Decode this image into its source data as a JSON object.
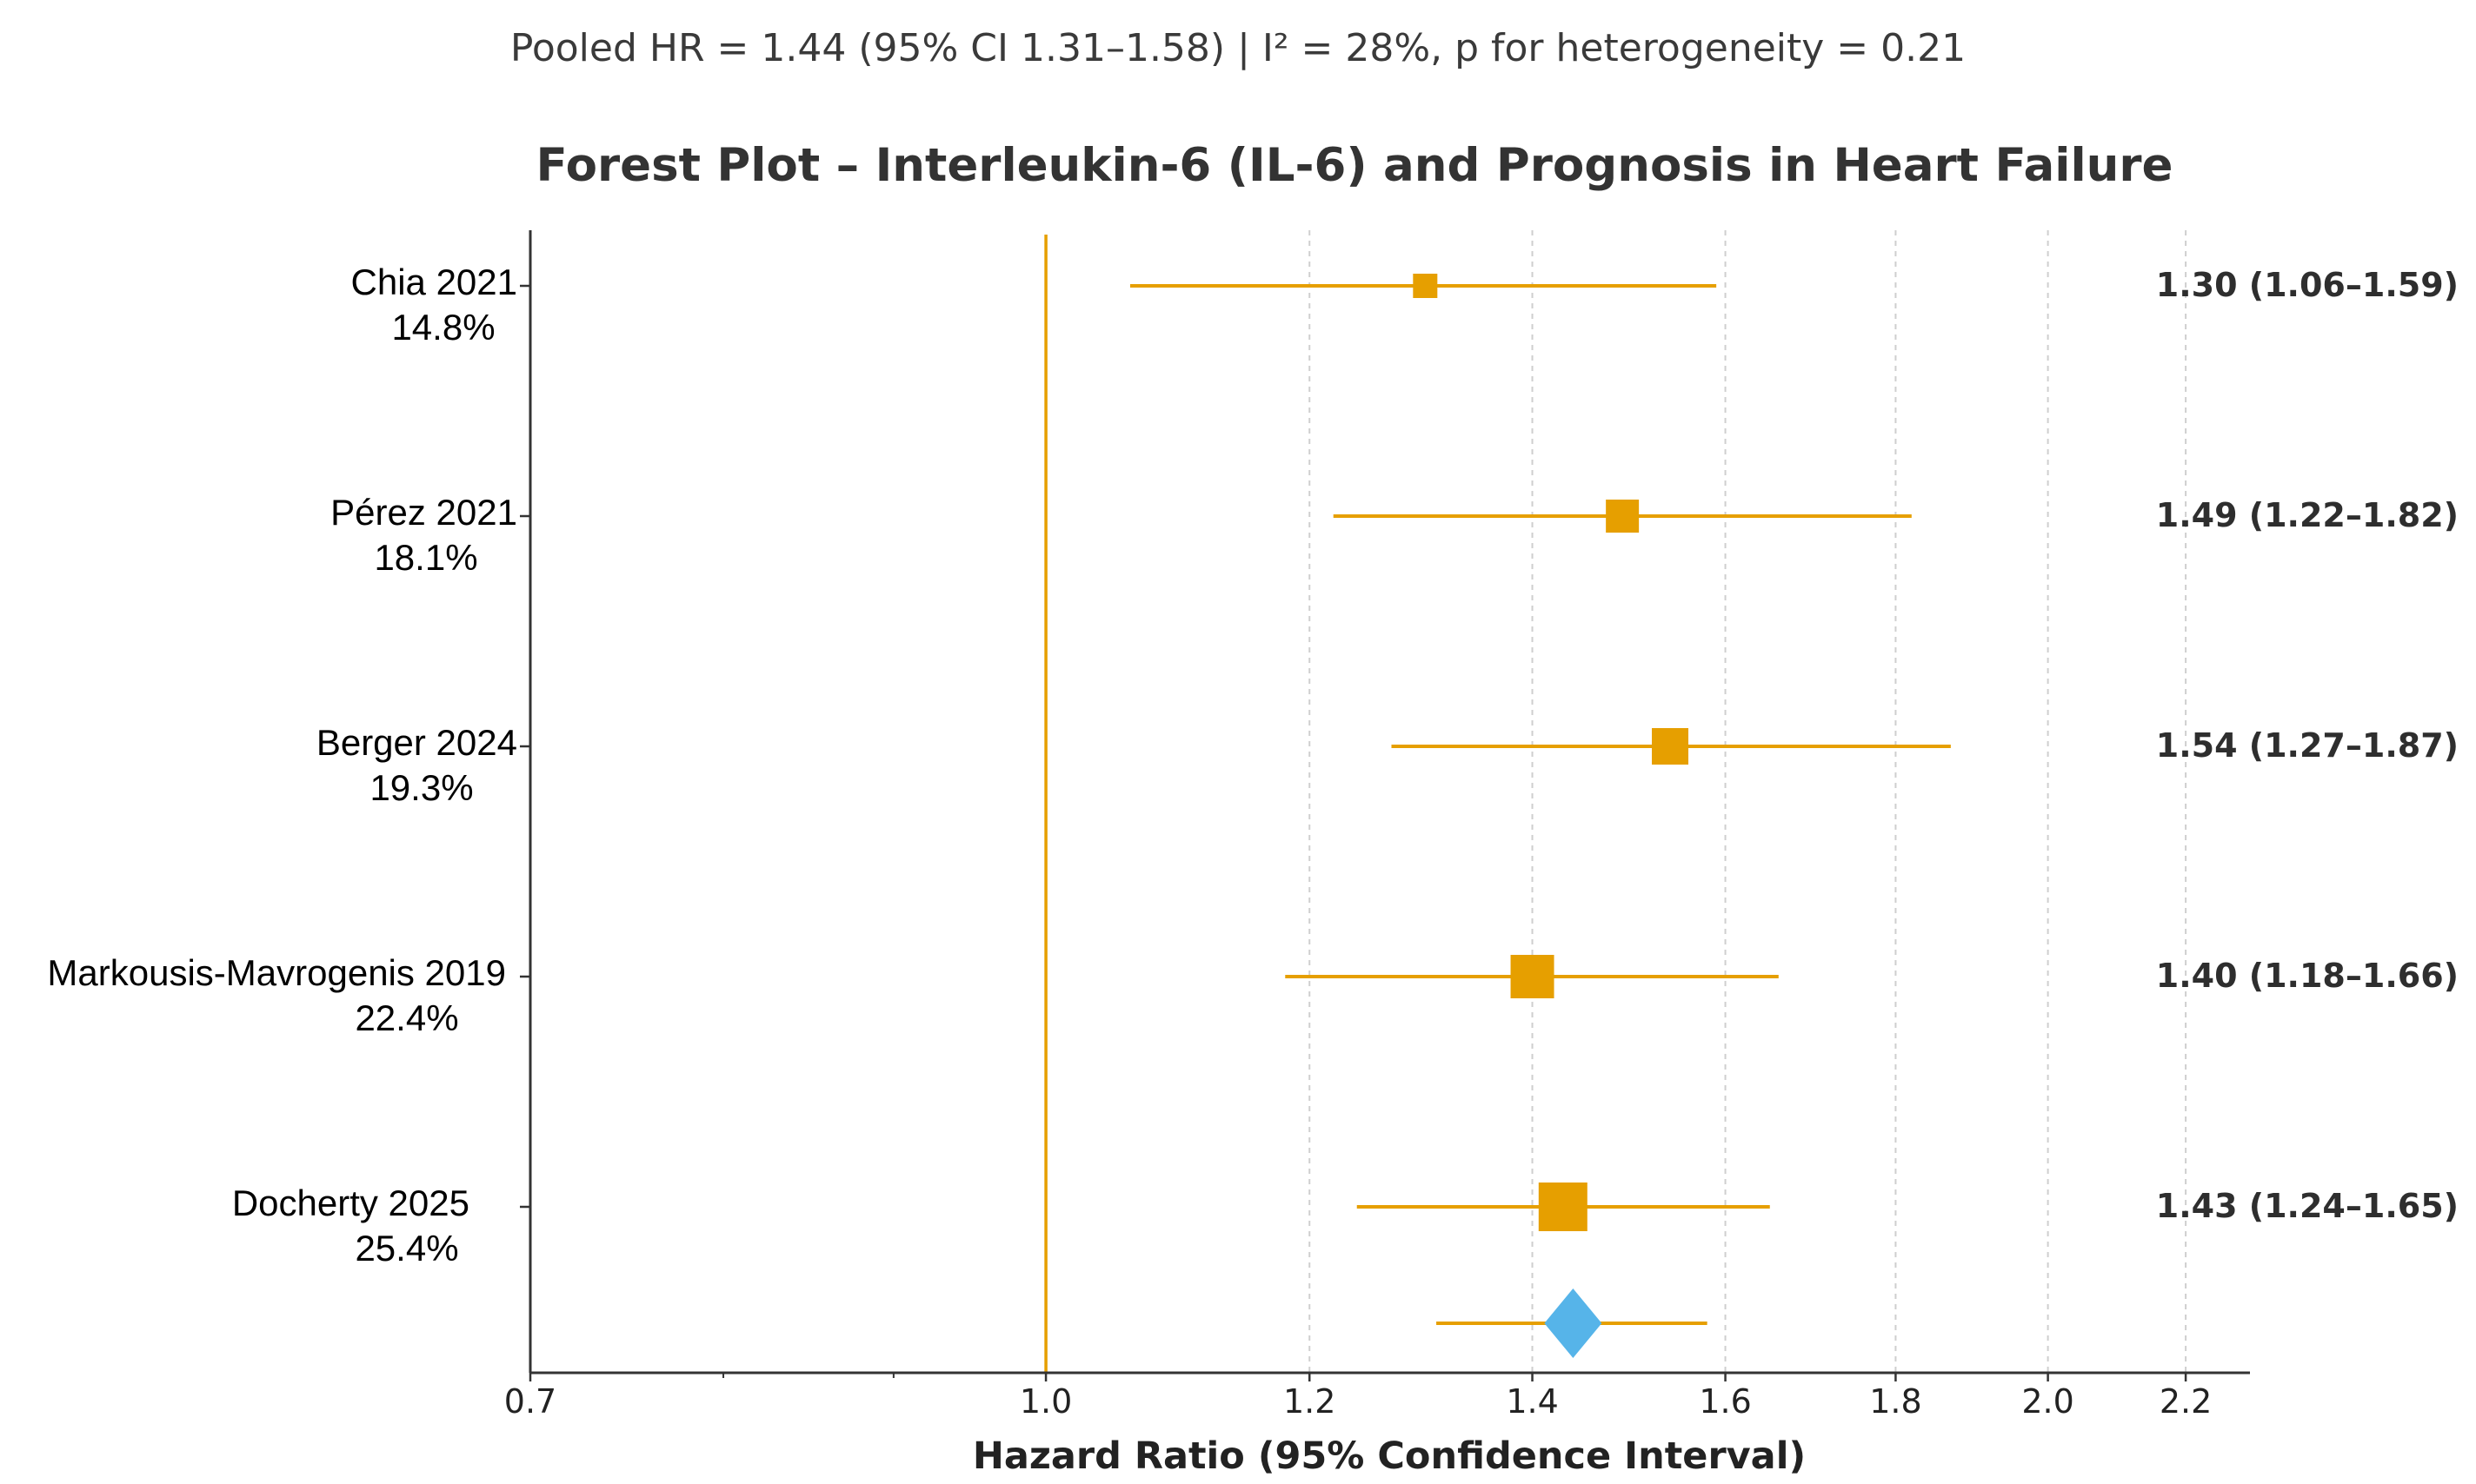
{
  "chart_data": {
    "type": "forest",
    "subtitle": "Pooled HR = 1.44 (95% CI 1.31–1.58) | I² = 28%, p for heterogeneity = 0.21",
    "title": "Forest Plot – Interleukin-6 (IL-6) and Prognosis in Heart Failure",
    "xlabel": "Hazard Ratio (95% Confidence Interval)",
    "xscale": "log",
    "xlim": [
      0.7,
      2.3
    ],
    "xticks": [
      {
        "value": 0.7,
        "label": "0.7"
      },
      {
        "value": 1.0,
        "label": "1.0"
      },
      {
        "value": 1.2,
        "label": "1.2"
      },
      {
        "value": 1.4,
        "label": "1.4"
      },
      {
        "value": 1.6,
        "label": "1.6"
      },
      {
        "value": 1.8,
        "label": "1.8"
      },
      {
        "value": 2.0,
        "label": "2.0"
      },
      {
        "value": 2.2,
        "label": "2.2"
      }
    ],
    "reference_line": 1.0,
    "studies": [
      {
        "name": "Chia 2021",
        "weight": "14.8%",
        "hr": 1.3,
        "lo": 1.06,
        "hi": 1.59,
        "label": "1.30 (1.06–1.59)"
      },
      {
        "name": "Pérez 2021",
        "weight": "18.1%",
        "hr": 1.49,
        "lo": 1.22,
        "hi": 1.82,
        "label": "1.49 (1.22–1.82)"
      },
      {
        "name": "Berger 2024",
        "weight": "19.3%",
        "hr": 1.54,
        "lo": 1.27,
        "hi": 1.87,
        "label": "1.54 (1.27–1.87)"
      },
      {
        "name": "Markousis-Mavrogenis 2019",
        "weight": "22.4%",
        "hr": 1.4,
        "lo": 1.18,
        "hi": 1.66,
        "label": "1.40 (1.18–1.66)"
      },
      {
        "name": "Docherty 2025",
        "weight": "25.4%",
        "hr": 1.43,
        "lo": 1.24,
        "hi": 1.65,
        "label": "1.43 (1.24–1.65)"
      }
    ],
    "pooled": {
      "hr": 1.44,
      "lo": 1.31,
      "hi": 1.58
    },
    "colors": {
      "study": "#E69F00",
      "pooled": "#56B4E9",
      "reference": "#E69F00",
      "axis": "#333333",
      "grid": "#cfcfcf"
    }
  }
}
